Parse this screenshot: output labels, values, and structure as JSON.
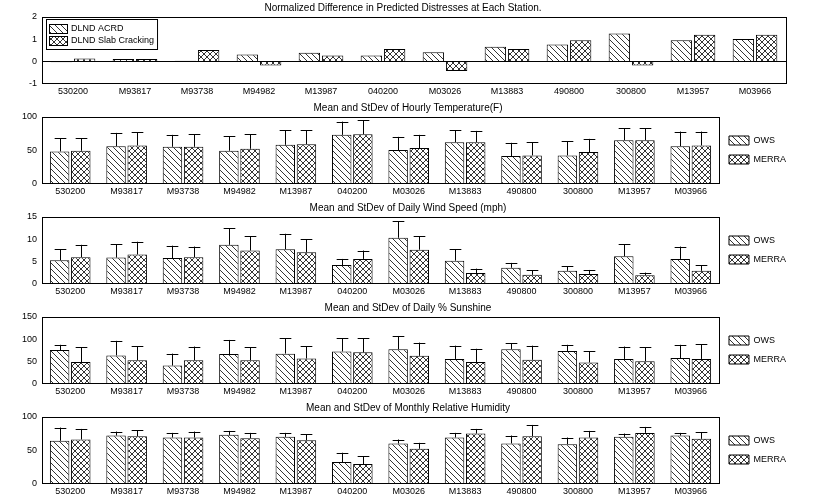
{
  "chart_data": [
    {
      "type": "bar",
      "title": "Normalized Difference in Predicted Distresses at Each Station.",
      "categories": [
        "530200",
        "M93817",
        "M93738",
        "M94982",
        "M13987",
        "040200",
        "M03026",
        "M13883",
        "490800",
        "300800",
        "M13957",
        "M03966"
      ],
      "series": [
        {
          "name": "DLND ACRD",
          "color": "#ffffff",
          "values": [
            -0.05,
            0.1,
            0.02,
            0.3,
            0.38,
            0.25,
            0.4,
            0.65,
            0.75,
            1.25,
            0.95,
            1.0
          ]
        },
        {
          "name": "DLND Slab Cracking",
          "color": "#ffffff",
          "values": [
            0.12,
            0.1,
            0.5,
            -0.2,
            0.25,
            0.55,
            -0.45,
            0.55,
            0.95,
            -0.2,
            1.2,
            1.2
          ]
        }
      ],
      "ylim": [
        -1,
        2
      ],
      "yticks": [
        -1,
        0,
        1,
        2
      ],
      "grid": false,
      "legend": "upper left"
    },
    {
      "type": "bar",
      "title": "Mean and StDev of Hourly Temperature(F)",
      "categories": [
        "530200",
        "M93817",
        "M93738",
        "M94982",
        "M13987",
        "040200",
        "M03026",
        "M13883",
        "490800",
        "300800",
        "M13957",
        "M03966"
      ],
      "series": [
        {
          "name": "OWS",
          "color": "#ffffff",
          "values": [
            48,
            56,
            55,
            49,
            58,
            73,
            50,
            62,
            41,
            42,
            65,
            56
          ],
          "stdev": [
            20,
            20,
            18,
            22,
            22,
            20,
            20,
            18,
            20,
            21,
            18,
            22
          ]
        },
        {
          "name": "MERRA",
          "color": "#ffffff",
          "values": [
            49,
            57,
            55,
            52,
            59,
            74,
            53,
            62,
            42,
            47,
            65,
            57
          ],
          "stdev": [
            19,
            20,
            19,
            22,
            21,
            21,
            20,
            17,
            20,
            20,
            18,
            21
          ]
        }
      ],
      "ylim": [
        0,
        100
      ],
      "yticks": [
        0,
        50,
        100
      ],
      "grid": false,
      "legend": "right"
    },
    {
      "type": "bar",
      "title": "Mean and StDev of Daily Wind Speed (mph)",
      "categories": [
        "530200",
        "M93817",
        "M93738",
        "M94982",
        "M13987",
        "040200",
        "M03026",
        "M13883",
        "490800",
        "300800",
        "M13957",
        "M03966"
      ],
      "series": [
        {
          "name": "OWS",
          "color": "#ffffff",
          "values": [
            5.2,
            5.8,
            5.7,
            8.7,
            7.7,
            4.1,
            10.3,
            5.1,
            3.5,
            2.8,
            6.1,
            5.5
          ],
          "stdev": [
            2.5,
            3,
            2.8,
            3.8,
            3.5,
            1.4,
            3.7,
            2.6,
            1.1,
            1,
            2.7,
            2.8
          ]
        },
        {
          "name": "MERRA",
          "color": "#ffffff",
          "values": [
            5.9,
            6.5,
            5.9,
            7.4,
            7,
            5.5,
            7.6,
            2.3,
            1.9,
            2.1,
            1.8,
            2.8
          ],
          "stdev": [
            2.8,
            2.9,
            2.4,
            3.2,
            3,
            1.9,
            3,
            1,
            1,
            0.9,
            0.6,
            1.3
          ]
        }
      ],
      "ylim": [
        0,
        15
      ],
      "yticks": [
        0,
        5,
        10,
        15
      ],
      "grid": false,
      "legend": "right"
    },
    {
      "type": "bar",
      "title": "Mean and StDev of Daily % Sunshine",
      "categories": [
        "530200",
        "M93817",
        "M93738",
        "M94982",
        "M13987",
        "040200",
        "M03026",
        "M13883",
        "490800",
        "300800",
        "M13957",
        "M03966"
      ],
      "series": [
        {
          "name": "OWS",
          "color": "#ffffff",
          "values": [
            75,
            63,
            40,
            66,
            67,
            72,
            77,
            55,
            77,
            73,
            55,
            57
          ],
          "stdev": [
            12,
            33,
            27,
            32,
            35,
            30,
            30,
            30,
            14,
            14,
            28,
            30
          ]
        },
        {
          "name": "MERRA",
          "color": "#ffffff",
          "values": [
            48,
            52,
            52,
            52,
            56,
            70,
            62,
            48,
            53,
            47,
            50,
            55
          ],
          "stdev": [
            33,
            32,
            31,
            30,
            28,
            32,
            30,
            30,
            32,
            25,
            32,
            33
          ]
        }
      ],
      "ylim": [
        0,
        150
      ],
      "yticks": [
        0,
        50,
        100,
        150
      ],
      "grid": false,
      "legend": "right"
    },
    {
      "type": "bar",
      "title": "Mean and StDev of Monthly Relative Humidity",
      "categories": [
        "530200",
        "M93817",
        "M93738",
        "M94982",
        "M13987",
        "040200",
        "M03026",
        "M13883",
        "490800",
        "300800",
        "M13957",
        "M03966"
      ],
      "series": [
        {
          "name": "OWS",
          "color": "#ffffff",
          "values": [
            64,
            72,
            69,
            73,
            70,
            32,
            60,
            69,
            60,
            59,
            70,
            72
          ],
          "stdev": [
            20,
            6,
            7,
            6,
            6,
            14,
            6,
            7,
            12,
            10,
            5,
            4
          ]
        },
        {
          "name": "MERRA",
          "color": "#ffffff",
          "values": [
            66,
            71,
            69,
            68,
            65,
            29,
            52,
            75,
            71,
            69,
            76,
            67
          ],
          "stdev": [
            16,
            9,
            9,
            8,
            9,
            12,
            9,
            7,
            17,
            10,
            9,
            10
          ]
        }
      ],
      "ylim": [
        0,
        100
      ],
      "yticks": [
        0,
        50,
        100
      ],
      "grid": false,
      "legend": "right"
    }
  ]
}
